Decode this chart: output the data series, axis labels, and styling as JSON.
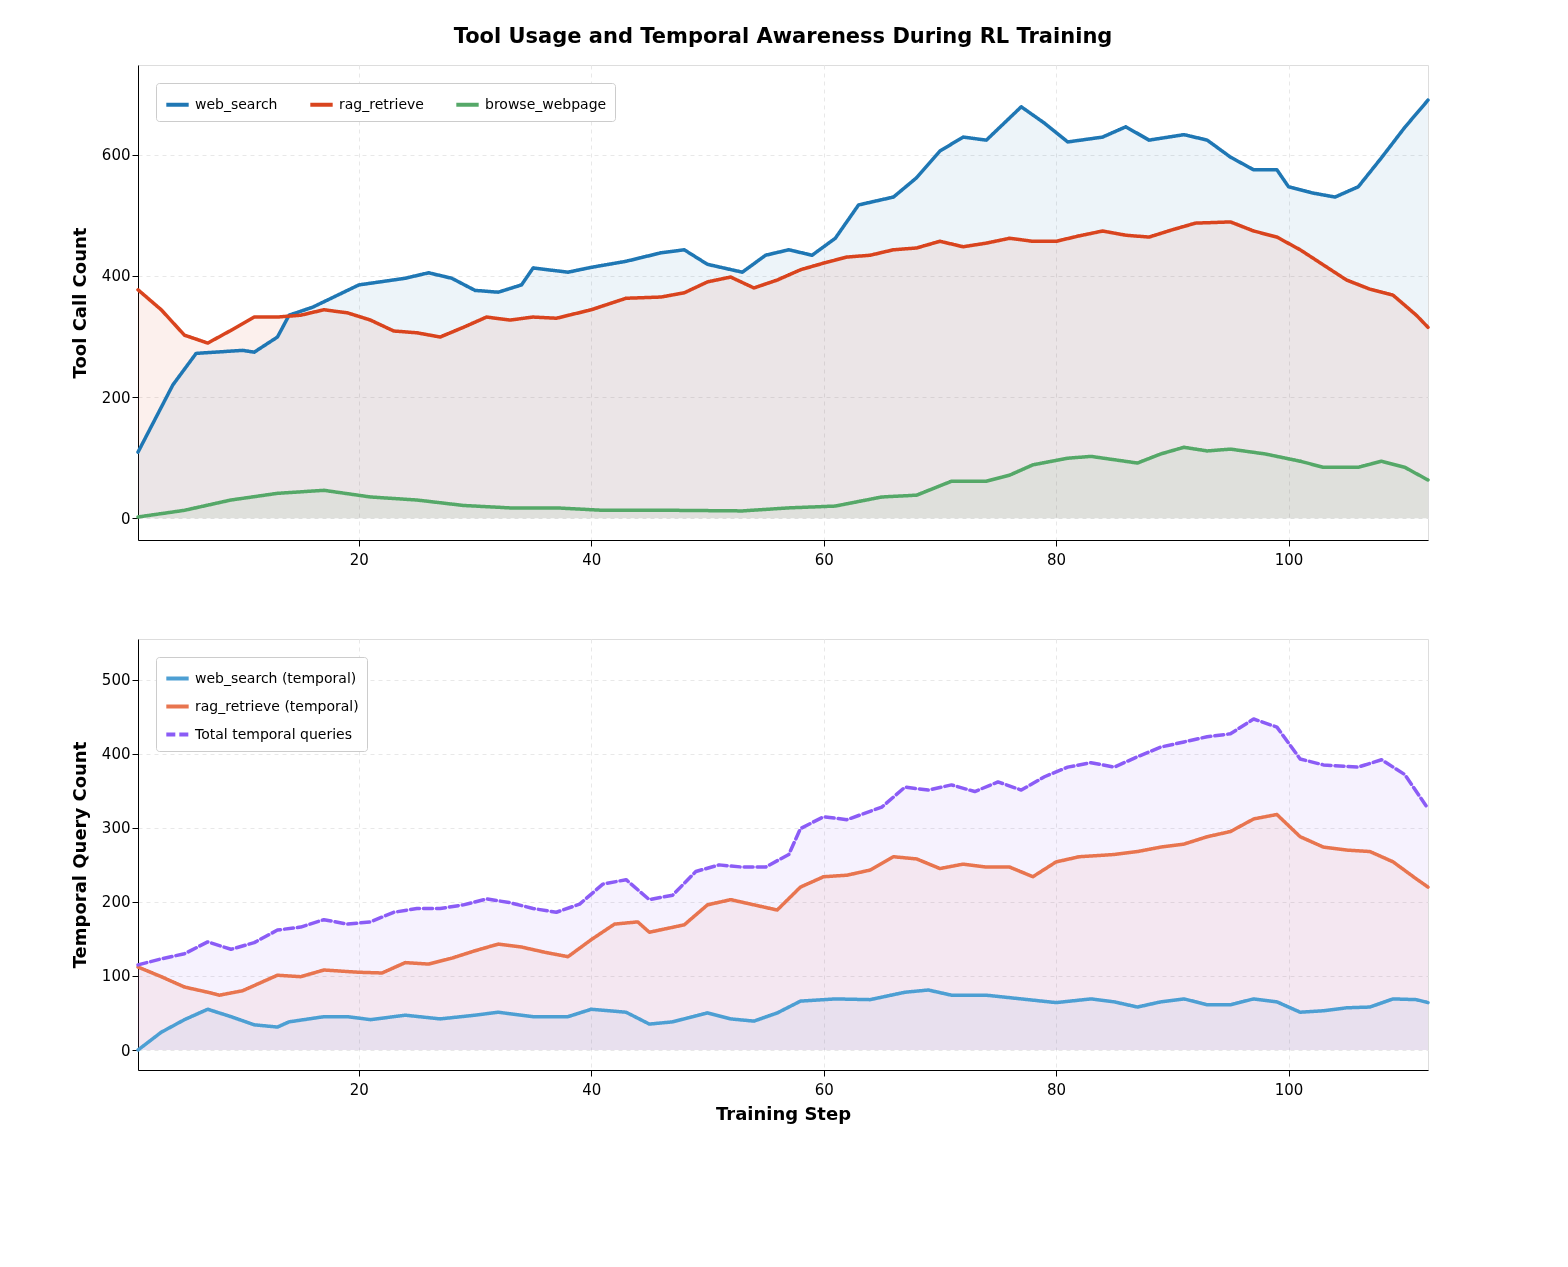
{
  "chart_data": [
    {
      "type": "line",
      "title": "Tool Usage and Temporal Awareness During RL Training",
      "ylabel": "Tool Call Count",
      "xlim": [
        1,
        112
      ],
      "xticks": [
        20,
        40,
        60,
        80,
        100
      ],
      "ylim": [
        -36,
        748
      ],
      "yticks": [
        0,
        200,
        400,
        600
      ],
      "grid": true,
      "legend": "top left",
      "series": [
        {
          "name": "web_search",
          "type": "area",
          "color": "#1f77b4",
          "line_style": "solid",
          "x": [
            1,
            4,
            6,
            10,
            11,
            13,
            14,
            16,
            20,
            24,
            26,
            28,
            30,
            32,
            34,
            35,
            38,
            40,
            43,
            46,
            48,
            50,
            53,
            55,
            57,
            59,
            61,
            63,
            66,
            68,
            70,
            72,
            74,
            77,
            79,
            81,
            84,
            86,
            88,
            91,
            93,
            95,
            97,
            99,
            100,
            102,
            104,
            106,
            108,
            110,
            112
          ],
          "values": [
            109,
            220,
            272,
            277,
            274,
            299,
            335,
            348,
            385,
            396,
            405,
            396,
            376,
            373,
            385,
            413,
            406,
            414,
            424,
            438,
            443,
            419,
            406,
            434,
            443,
            434,
            462,
            517,
            530,
            562,
            606,
            629,
            624,
            679,
            652,
            621,
            629,
            646,
            624,
            633,
            624,
            596,
            575,
            575,
            547,
            537,
            530,
            547,
            595,
            645,
            690
          ]
        },
        {
          "name": "rag_retrieve",
          "type": "area",
          "color": "#d9441e",
          "line_style": "solid",
          "x": [
            1,
            3,
            5,
            7,
            9,
            11,
            13,
            15,
            17,
            19,
            21,
            23,
            25,
            27,
            29,
            31,
            33,
            35,
            37,
            40,
            43,
            46,
            48,
            50,
            52,
            54,
            56,
            58,
            60,
            62,
            64,
            66,
            68,
            70,
            72,
            74,
            76,
            78,
            80,
            82,
            84,
            86,
            88,
            90,
            92,
            95,
            97,
            99,
            101,
            103,
            105,
            107,
            109,
            111,
            112
          ],
          "values": [
            377,
            344,
            302,
            289,
            310,
            332,
            332,
            335,
            344,
            339,
            327,
            309,
            306,
            299,
            315,
            332,
            327,
            332,
            330,
            344,
            363,
            365,
            372,
            390,
            398,
            380,
            393,
            410,
            421,
            431,
            434,
            443,
            446,
            457,
            448,
            454,
            462,
            457,
            457,
            466,
            474,
            467,
            464,
            476,
            487,
            489,
            474,
            464,
            443,
            418,
            393,
            378,
            368,
            335,
            315
          ]
        },
        {
          "name": "browse_webpage",
          "type": "area",
          "color": "#55a868",
          "line_style": "solid",
          "x": [
            1,
            5,
            9,
            13,
            17,
            21,
            25,
            29,
            33,
            37,
            41,
            47,
            53,
            57,
            61,
            65,
            68,
            71,
            74,
            76,
            78,
            81,
            83,
            87,
            89,
            91,
            93,
            95,
            98,
            101,
            103,
            106,
            108,
            110,
            112
          ],
          "values": [
            2,
            13,
            30,
            41,
            46,
            35,
            30,
            21,
            17,
            17,
            13,
            13,
            12,
            17,
            20,
            35,
            38,
            61,
            61,
            71,
            88,
            99,
            102,
            91,
            106,
            117,
            111,
            114,
            106,
            94,
            84,
            84,
            94,
            84,
            63
          ]
        }
      ]
    },
    {
      "type": "line",
      "xlabel": "Training Step",
      "ylabel": "Temporal Query Count",
      "xlim": [
        1,
        112
      ],
      "xticks": [
        20,
        40,
        60,
        80,
        100
      ],
      "ylim": [
        -27,
        555
      ],
      "yticks": [
        0,
        100,
        200,
        300,
        400,
        500
      ],
      "grid": true,
      "legend": "top left",
      "series": [
        {
          "name": "web_search (temporal)",
          "type": "area",
          "color": "#4d9fd3",
          "line_style": "solid",
          "x": [
            1,
            3,
            5,
            7,
            9,
            11,
            13,
            14,
            17,
            19,
            21,
            24,
            27,
            30,
            32,
            35,
            38,
            40,
            43,
            45,
            47,
            50,
            52,
            54,
            56,
            58,
            61,
            64,
            67,
            69,
            71,
            74,
            77,
            80,
            83,
            85,
            87,
            89,
            91,
            93,
            95,
            97,
            99,
            101,
            103,
            105,
            107,
            109,
            111,
            112
          ],
          "values": [
            0,
            24,
            41,
            55,
            45,
            34,
            31,
            38,
            45,
            45,
            41,
            47,
            42,
            47,
            51,
            45,
            45,
            55,
            51,
            35,
            38,
            50,
            42,
            39,
            50,
            66,
            69,
            68,
            78,
            81,
            74,
            74,
            69,
            64,
            69,
            65,
            58,
            65,
            69,
            61,
            61,
            69,
            65,
            51,
            53,
            57,
            58,
            69,
            68,
            64
          ]
        },
        {
          "name": "rag_retrieve (temporal)",
          "type": "area",
          "color": "#e8754f",
          "line_style": "solid",
          "x": [
            1,
            3,
            5,
            7,
            8,
            10,
            13,
            15,
            17,
            20,
            22,
            24,
            26,
            28,
            30,
            32,
            34,
            36,
            38,
            40,
            42,
            44,
            45,
            48,
            50,
            52,
            54,
            56,
            58,
            60,
            62,
            64,
            66,
            68,
            70,
            72,
            74,
            76,
            78,
            80,
            82,
            85,
            87,
            89,
            91,
            93,
            95,
            97,
            99,
            101,
            103,
            105,
            107,
            109,
            111,
            112
          ],
          "values": [
            112,
            99,
            85,
            78,
            74,
            80,
            101,
            99,
            108,
            105,
            104,
            118,
            116,
            124,
            134,
            143,
            139,
            132,
            126,
            149,
            170,
            173,
            159,
            169,
            196,
            203,
            196,
            189,
            220,
            234,
            236,
            243,
            261,
            258,
            245,
            251,
            247,
            247,
            234,
            254,
            261,
            264,
            268,
            274,
            278,
            288,
            295,
            312,
            318,
            288,
            274,
            270,
            268,
            254,
            231,
            220
          ]
        },
        {
          "name": "Total temporal queries",
          "type": "area",
          "color": "#8b5cf6",
          "line_style": "dashed",
          "x": [
            1,
            3,
            5,
            7,
            9,
            11,
            13,
            15,
            17,
            19,
            21,
            23,
            25,
            27,
            29,
            31,
            33,
            35,
            37,
            39,
            41,
            43,
            45,
            47,
            49,
            51,
            53,
            55,
            57,
            58,
            60,
            62,
            65,
            67,
            69,
            71,
            73,
            75,
            77,
            79,
            81,
            83,
            85,
            87,
            89,
            91,
            93,
            95,
            97,
            99,
            101,
            103,
            106,
            108,
            110,
            112
          ],
          "values": [
            115,
            123,
            130,
            146,
            136,
            145,
            162,
            166,
            176,
            170,
            173,
            186,
            191,
            191,
            196,
            204,
            199,
            191,
            186,
            197,
            224,
            230,
            203,
            209,
            241,
            250,
            247,
            247,
            264,
            299,
            315,
            311,
            328,
            355,
            351,
            358,
            349,
            362,
            351,
            369,
            382,
            388,
            382,
            396,
            409,
            416,
            423,
            427,
            447,
            436,
            393,
            385,
            382,
            392,
            372,
            326
          ]
        }
      ]
    }
  ]
}
